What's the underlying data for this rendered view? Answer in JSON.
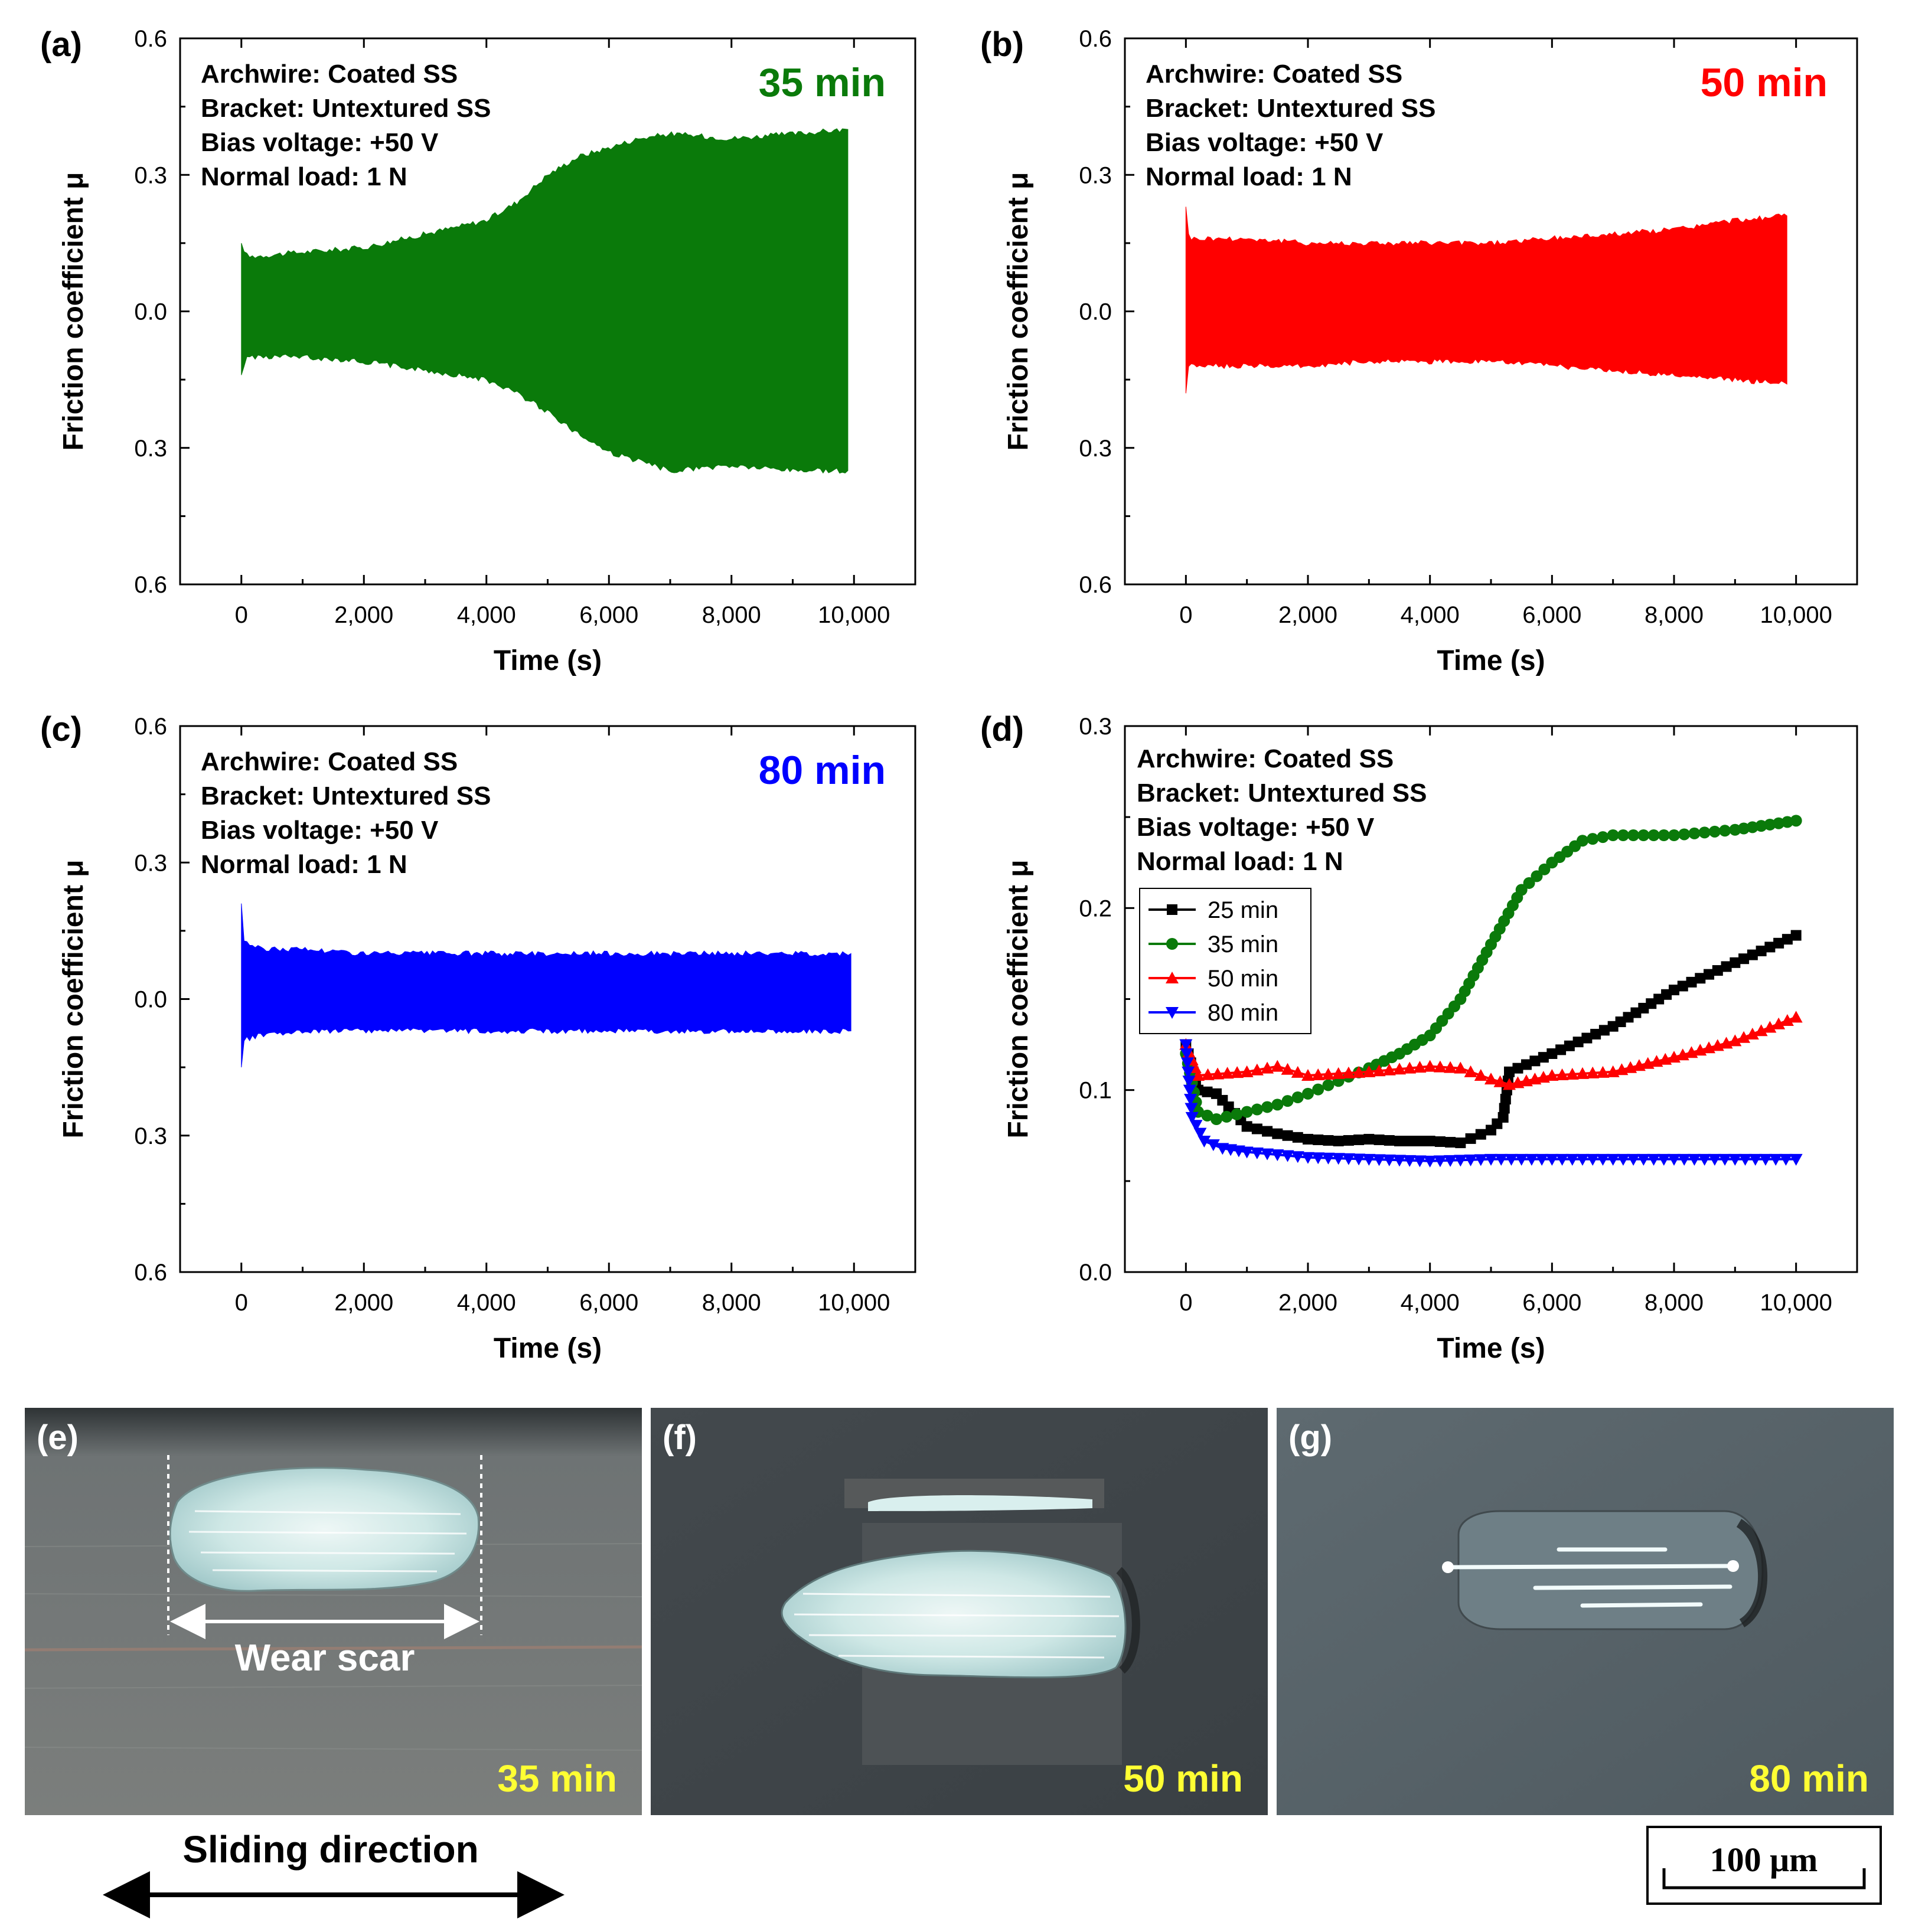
{
  "colors": {
    "green": "#0a7a0a",
    "red": "#ff0000",
    "blue": "#0000ff",
    "black": "#000000",
    "highlight": "#ffff33"
  },
  "info_lines": [
    "Archwire: Coated SS",
    "Bracket: Untextured SS",
    "Bias voltage: +50 V",
    "Normal load: 1 N"
  ],
  "chart_data": [
    {
      "panel": "(a)",
      "type": "area",
      "title": "35 min",
      "title_color": "#0a7a0a",
      "xlabel": "Time (s)",
      "ylabel": "Friction coefficient μ",
      "xlim": [
        -1000,
        11000
      ],
      "ylim": [
        -0.6,
        0.6
      ],
      "xticks": [
        0,
        2000,
        4000,
        6000,
        8000,
        10000
      ],
      "xtick_labels": [
        "0",
        "2,000",
        "4,000",
        "6,000",
        "8,000",
        "10,000"
      ],
      "yticks": [
        0.6,
        0.3,
        0.0,
        -0.3,
        -0.6
      ],
      "ytick_labels": [
        "0.6",
        "0.3",
        "0.0",
        "0.3",
        "0.6"
      ],
      "series": [
        {
          "name": "35 min",
          "color": "#0a7a0a",
          "x": [
            0,
            100,
            1000,
            2000,
            3000,
            4000,
            4500,
            5000,
            5500,
            6000,
            6500,
            7000,
            8000,
            9000,
            9900
          ],
          "upper": [
            0.15,
            0.12,
            0.13,
            0.14,
            0.17,
            0.2,
            0.24,
            0.3,
            0.34,
            0.36,
            0.38,
            0.39,
            0.38,
            0.39,
            0.4
          ],
          "lower": [
            -0.14,
            -0.1,
            -0.1,
            -0.11,
            -0.13,
            -0.15,
            -0.18,
            -0.22,
            -0.27,
            -0.31,
            -0.33,
            -0.35,
            -0.34,
            -0.35,
            -0.35
          ]
        }
      ]
    },
    {
      "panel": "(b)",
      "type": "area",
      "title": "50 min",
      "title_color": "#ff0000",
      "xlabel": "Time (s)",
      "ylabel": "Friction coefficient μ",
      "xlim": [
        -1000,
        11000
      ],
      "ylim": [
        -0.6,
        0.6
      ],
      "xticks": [
        0,
        2000,
        4000,
        6000,
        8000,
        10000
      ],
      "xtick_labels": [
        "0",
        "2,000",
        "4,000",
        "6,000",
        "8,000",
        "10,000"
      ],
      "yticks": [
        0.6,
        0.3,
        0.0,
        -0.3,
        -0.6
      ],
      "ytick_labels": [
        "0.6",
        "0.3",
        "0.0",
        "0.3",
        "0.6"
      ],
      "series": [
        {
          "name": "50 min",
          "color": "#ff0000",
          "x": [
            0,
            50,
            1000,
            2000,
            3000,
            4000,
            5000,
            6000,
            7000,
            8000,
            9000,
            9850
          ],
          "upper": [
            0.23,
            0.16,
            0.16,
            0.15,
            0.15,
            0.15,
            0.15,
            0.16,
            0.17,
            0.18,
            0.2,
            0.21
          ],
          "lower": [
            -0.18,
            -0.12,
            -0.12,
            -0.12,
            -0.11,
            -0.11,
            -0.11,
            -0.12,
            -0.13,
            -0.14,
            -0.15,
            -0.16
          ]
        }
      ]
    },
    {
      "panel": "(c)",
      "type": "area",
      "title": "80 min",
      "title_color": "#0000ff",
      "xlabel": "Time (s)",
      "ylabel": "Friction coefficient μ",
      "xlim": [
        -1000,
        11000
      ],
      "ylim": [
        -0.6,
        0.6
      ],
      "xticks": [
        0,
        2000,
        4000,
        6000,
        8000,
        10000
      ],
      "xtick_labels": [
        "0",
        "2,000",
        "4,000",
        "6,000",
        "8,000",
        "10,000"
      ],
      "yticks": [
        0.6,
        0.3,
        0.0,
        -0.3,
        -0.6
      ],
      "ytick_labels": [
        "0.6",
        "0.3",
        "0.0",
        "0.3",
        "0.6"
      ],
      "series": [
        {
          "name": "80 min",
          "color": "#0000ff",
          "x": [
            0,
            30,
            300,
            1000,
            2000,
            4000,
            6000,
            8000,
            9950
          ],
          "upper": [
            0.21,
            0.13,
            0.11,
            0.11,
            0.1,
            0.1,
            0.1,
            0.1,
            0.1
          ],
          "lower": [
            -0.15,
            -0.09,
            -0.08,
            -0.07,
            -0.07,
            -0.07,
            -0.07,
            -0.07,
            -0.07
          ]
        }
      ]
    },
    {
      "panel": "(d)",
      "type": "line",
      "title": "",
      "xlabel": "Time (s)",
      "ylabel": "Friction coefficient μ",
      "xlim": [
        -1000,
        11000
      ],
      "ylim": [
        0.0,
        0.3
      ],
      "xticks": [
        0,
        2000,
        4000,
        6000,
        8000,
        10000
      ],
      "xtick_labels": [
        "0",
        "2,000",
        "4,000",
        "6,000",
        "8,000",
        "10,000"
      ],
      "yticks": [
        0.3,
        0.2,
        0.1,
        0.0
      ],
      "ytick_labels": [
        "0.3",
        "0.2",
        "0.1",
        "0.0"
      ],
      "legend_position": "upper-left",
      "series": [
        {
          "name": "25 min",
          "color": "#000000",
          "marker": "square",
          "x": [
            0,
            200,
            500,
            1000,
            1500,
            2000,
            2500,
            3000,
            3500,
            4000,
            4500,
            5000,
            5200,
            5300,
            6000,
            7000,
            8000,
            9000,
            10000
          ],
          "y": [
            0.125,
            0.1,
            0.098,
            0.08,
            0.076,
            0.073,
            0.072,
            0.073,
            0.072,
            0.072,
            0.071,
            0.078,
            0.085,
            0.11,
            0.12,
            0.135,
            0.155,
            0.17,
            0.185
          ]
        },
        {
          "name": "35 min",
          "color": "#0a7a0a",
          "marker": "circle",
          "x": [
            0,
            200,
            500,
            1000,
            1500,
            2000,
            2500,
            3000,
            3500,
            4000,
            4500,
            5000,
            5500,
            6000,
            6500,
            7000,
            8000,
            9000,
            10000
          ],
          "y": [
            0.12,
            0.088,
            0.084,
            0.088,
            0.092,
            0.098,
            0.105,
            0.112,
            0.12,
            0.13,
            0.15,
            0.18,
            0.21,
            0.225,
            0.237,
            0.24,
            0.24,
            0.243,
            0.248
          ]
        },
        {
          "name": "50 min",
          "color": "#ff0000",
          "marker": "triangle-up",
          "x": [
            0,
            200,
            1000,
            1500,
            2000,
            3000,
            4000,
            4500,
            5000,
            5300,
            6000,
            7000,
            8000,
            9000,
            10000
          ],
          "y": [
            0.125,
            0.108,
            0.11,
            0.113,
            0.108,
            0.11,
            0.113,
            0.112,
            0.106,
            0.103,
            0.108,
            0.11,
            0.118,
            0.127,
            0.14
          ]
        },
        {
          "name": "80 min",
          "color": "#0000ff",
          "marker": "triangle-down",
          "x": [
            0,
            100,
            300,
            600,
            1000,
            2000,
            3000,
            4000,
            5000,
            6000,
            7000,
            8000,
            9000,
            10000
          ],
          "y": [
            0.125,
            0.085,
            0.072,
            0.068,
            0.066,
            0.063,
            0.062,
            0.061,
            0.062,
            0.062,
            0.062,
            0.062,
            0.062,
            0.062
          ]
        }
      ]
    }
  ],
  "photos": [
    {
      "label": "(e)",
      "time": "35 min"
    },
    {
      "label": "(f)",
      "time": "50 min"
    },
    {
      "label": "(g)",
      "time": "80 min"
    }
  ],
  "annotations": {
    "wear_scar": "Wear scar",
    "sliding_direction": "Sliding direction",
    "scale_bar": "100 μm"
  }
}
